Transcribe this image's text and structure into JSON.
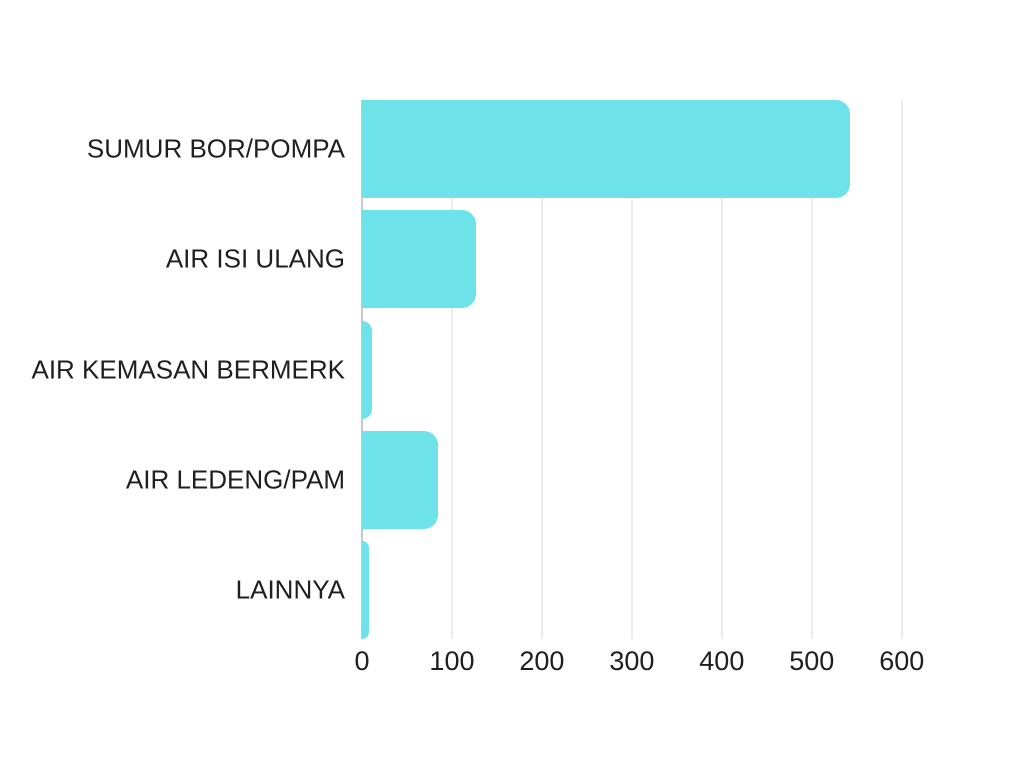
{
  "chart": {
    "background_color": "#ffffff",
    "bar_color": "#6de2e8",
    "grid_color": "#ebebeb",
    "zero_line_color": "#c8c8c8",
    "label_color": "#1f1f1f",
    "tick_color": "#1f1f1f"
  },
  "chart_data": {
    "type": "bar",
    "orientation": "horizontal",
    "title": "",
    "xlabel": "",
    "ylabel": "",
    "categories": [
      "SUMUR BOR/POMPA",
      "AIR ISI ULANG",
      "AIR KEMASAN BERMERK",
      "AIR LEDENG/PAM",
      "LAINNYA"
    ],
    "values": [
      543,
      127,
      11,
      84,
      8
    ],
    "xlim": [
      0,
      667
    ],
    "xticks": [
      0,
      100,
      200,
      300,
      400,
      500,
      600
    ],
    "grid": true,
    "legend": false
  }
}
